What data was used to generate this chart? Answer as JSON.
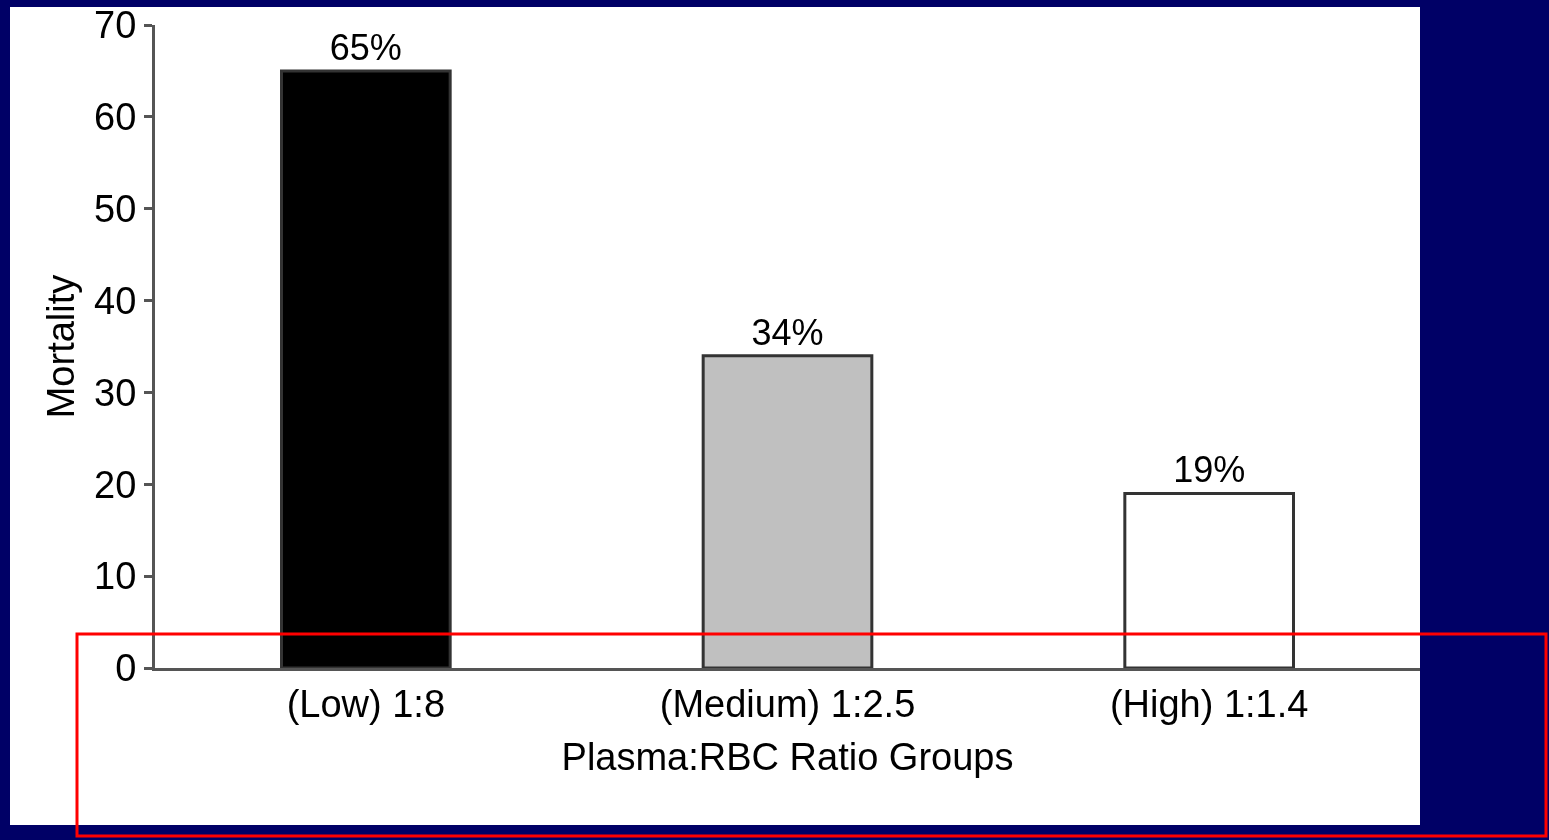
{
  "chart_data": {
    "type": "bar",
    "xlabel": "Plasma:RBC Ratio Groups",
    "ylabel": "Mortality",
    "categories": [
      "(Low) 1:8",
      "(Medium) 1:2.5",
      "(High) 1:1.4"
    ],
    "values": [
      65,
      34,
      19
    ],
    "colors": [
      "#000000",
      "#c0c0c0",
      "#ffffff"
    ],
    "value_labels": [
      "65%",
      "34%",
      "19%"
    ],
    "ylim": [
      0,
      70
    ],
    "yticks": [
      0,
      10,
      20,
      30,
      40,
      50,
      60,
      70
    ],
    "legend": false
  }
}
